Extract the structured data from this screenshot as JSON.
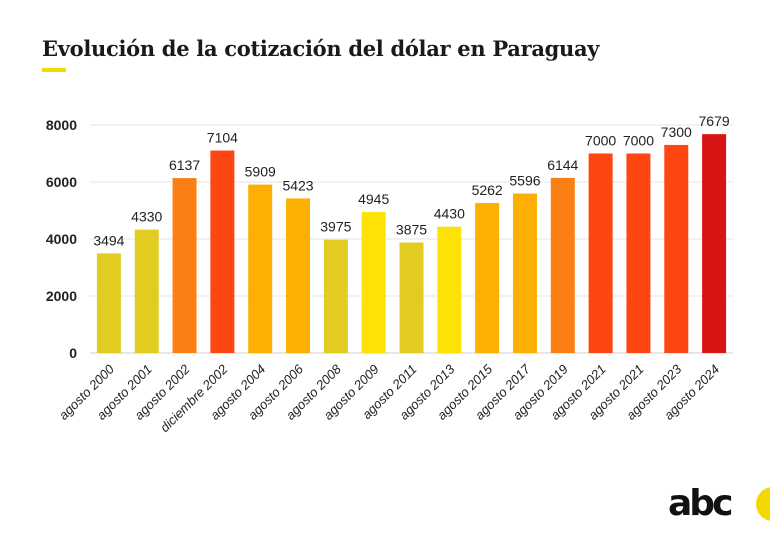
{
  "header": {
    "title": "Evolución de la cotización del dólar en Paraguay"
  },
  "brand": {
    "logo_text": "abc"
  },
  "chart_data": {
    "type": "bar",
    "title": "Evolución de la cotización del dólar en Paraguay",
    "xlabel": "",
    "ylabel": "",
    "ylim": [
      0,
      8000
    ],
    "yticks": [
      0,
      2000,
      4000,
      6000,
      8000
    ],
    "grid": true,
    "categories": [
      "agosto 2000",
      "agosto 2001",
      "agosto 2002",
      "diciembre 2002",
      "agosto 2004",
      "agosto 2006",
      "agosto 2008",
      "agosto 2009",
      "agosto 2011",
      "agosto 2013",
      "agosto 2015",
      "agosto 2017",
      "agosto 2019",
      "agosto 2021",
      "agosto 2021",
      "agosto 2023",
      "agosto 2024"
    ],
    "values": [
      3494,
      4330,
      6137,
      7104,
      5909,
      5423,
      3975,
      4945,
      3875,
      4430,
      5262,
      5596,
      6144,
      7000,
      7000,
      7300,
      7679
    ],
    "colors": [
      "#e3cc21",
      "#e3cc21",
      "#fb7f13",
      "#fe4612",
      "#fdb003",
      "#fdb003",
      "#e3cc21",
      "#fee205",
      "#e3cc21",
      "#fee205",
      "#fdb003",
      "#fdb003",
      "#fb7f13",
      "#fe4612",
      "#fe4612",
      "#fe4612",
      "#d91414"
    ]
  }
}
